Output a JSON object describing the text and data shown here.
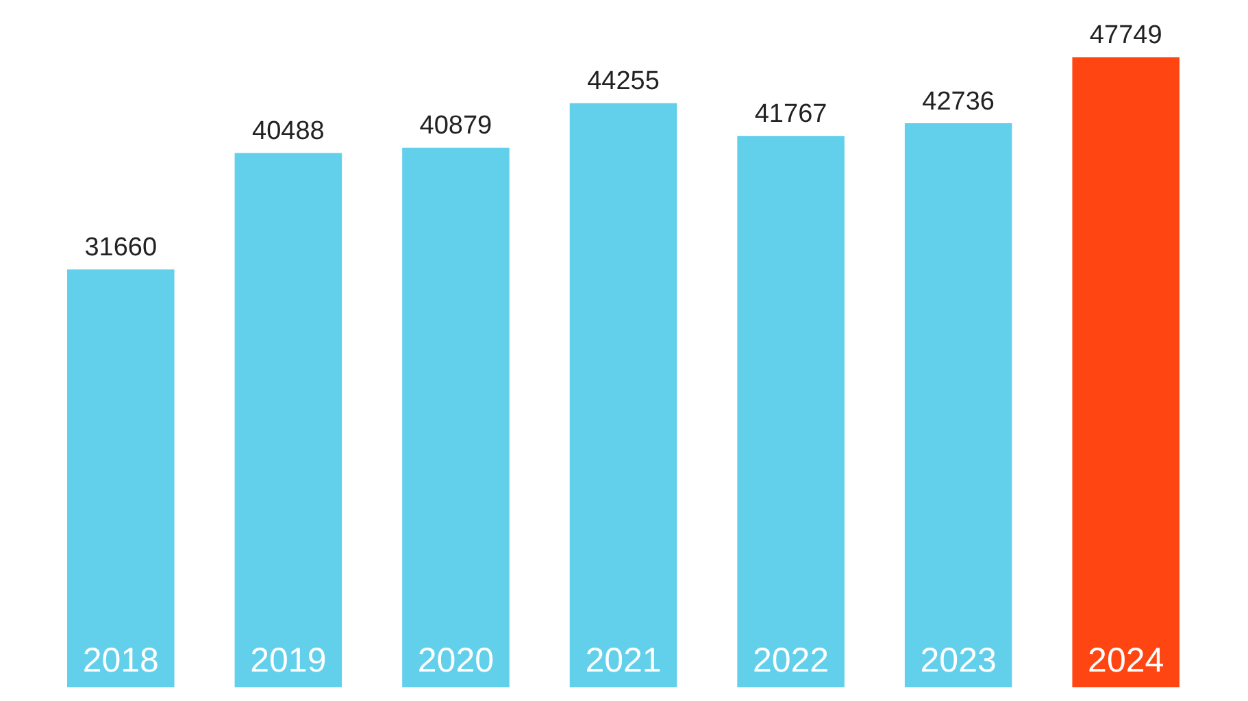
{
  "chart_data": {
    "type": "bar",
    "categories": [
      "2018",
      "2019",
      "2020",
      "2021",
      "2022",
      "2023",
      "2024"
    ],
    "values": [
      31660,
      40488,
      40879,
      44255,
      41767,
      42736,
      47749
    ],
    "colors": [
      "#62d0eb",
      "#62d0eb",
      "#62d0eb",
      "#62d0eb",
      "#62d0eb",
      "#62d0eb",
      "#ff4612"
    ],
    "data_labels": true
  }
}
